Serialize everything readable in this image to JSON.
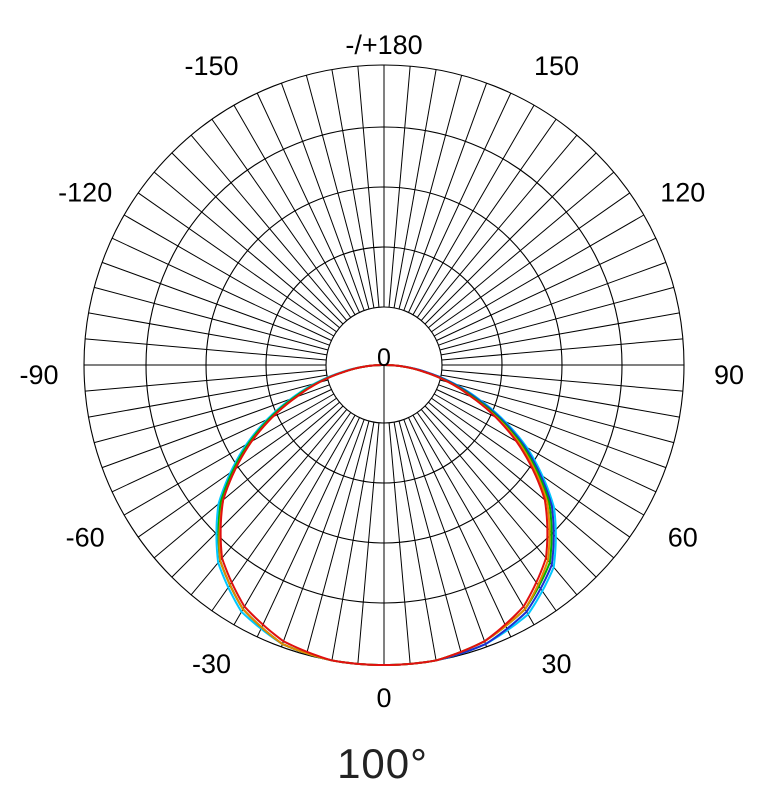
{
  "chart_data": {
    "type": "polar",
    "grid": true,
    "angle_labels": [
      {
        "angle": 180,
        "label": "-/+180"
      },
      {
        "angle": -150,
        "label": "-150"
      },
      {
        "angle": 150,
        "label": "150"
      },
      {
        "angle": -120,
        "label": "-120"
      },
      {
        "angle": 120,
        "label": "120"
      },
      {
        "angle": -90,
        "label": "-90"
      },
      {
        "angle": 90,
        "label": "90"
      },
      {
        "angle": -60,
        "label": "-60"
      },
      {
        "angle": 60,
        "label": "60"
      },
      {
        "angle": -30,
        "label": "-30"
      },
      {
        "angle": 30,
        "label": "30"
      },
      {
        "angle": 0,
        "label": "0"
      }
    ],
    "center_label": "0",
    "beam_angle_label": "100°",
    "radial_rings": 5,
    "angular_step_deg": 5,
    "series": [
      {
        "color": "#00c8ff",
        "angles": [
          -90,
          -80,
          -70,
          -60,
          -50,
          -40,
          -30,
          -20,
          -10,
          0,
          10,
          20,
          30,
          40,
          50,
          60,
          70,
          80,
          90
        ],
        "values": [
          0,
          0.15,
          0.33,
          0.53,
          0.72,
          0.86,
          0.95,
          0.99,
          1.0,
          1.0,
          1.0,
          0.99,
          0.96,
          0.88,
          0.74,
          0.55,
          0.34,
          0.15,
          0
        ]
      },
      {
        "color": "#1a2fd0",
        "angles": [
          -90,
          -80,
          -70,
          -60,
          -50,
          -40,
          -30,
          -20,
          -10,
          0,
          10,
          20,
          30,
          40,
          50,
          60,
          70,
          80,
          90
        ],
        "values": [
          0,
          0.14,
          0.32,
          0.52,
          0.71,
          0.85,
          0.94,
          0.99,
          1.0,
          1.0,
          1.0,
          0.99,
          0.95,
          0.87,
          0.73,
          0.54,
          0.33,
          0.15,
          0
        ]
      },
      {
        "color": "#00b000",
        "angles": [
          -90,
          -80,
          -70,
          -60,
          -50,
          -40,
          -30,
          -20,
          -10,
          0,
          10,
          20,
          30,
          40,
          50,
          60,
          70,
          80,
          90
        ],
        "values": [
          0,
          0.14,
          0.32,
          0.52,
          0.71,
          0.85,
          0.94,
          0.99,
          1.0,
          1.0,
          1.0,
          0.98,
          0.94,
          0.86,
          0.72,
          0.53,
          0.32,
          0.14,
          0
        ]
      },
      {
        "color": "#e08a00",
        "angles": [
          -90,
          -80,
          -70,
          -60,
          -50,
          -40,
          -30,
          -20,
          -10,
          0,
          10,
          20,
          30,
          40,
          50,
          60,
          70,
          80,
          90
        ],
        "values": [
          0,
          0.14,
          0.31,
          0.51,
          0.7,
          0.85,
          0.94,
          0.99,
          1.0,
          1.0,
          1.0,
          0.98,
          0.94,
          0.85,
          0.71,
          0.52,
          0.31,
          0.14,
          0
        ]
      },
      {
        "color": "#e01010",
        "angles": [
          -90,
          -80,
          -70,
          -60,
          -50,
          -40,
          -30,
          -20,
          -10,
          0,
          10,
          20,
          30,
          40,
          50,
          60,
          70,
          80,
          90
        ],
        "values": [
          0,
          0.14,
          0.31,
          0.51,
          0.7,
          0.84,
          0.93,
          0.98,
          1.0,
          1.0,
          1.0,
          0.98,
          0.93,
          0.84,
          0.7,
          0.51,
          0.31,
          0.14,
          0
        ]
      }
    ]
  }
}
